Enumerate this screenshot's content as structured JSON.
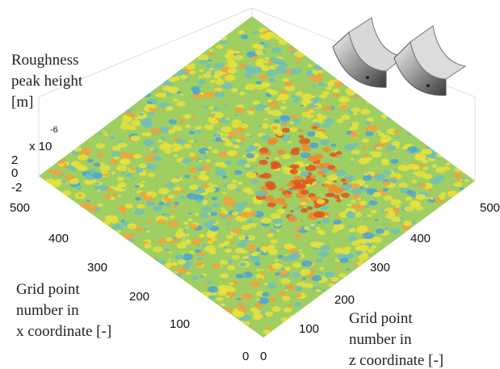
{
  "labels": {
    "vertical": [
      "Roughness",
      "peak height",
      "[m]"
    ],
    "x": [
      "Grid point",
      "number in",
      "x coordinate [-]"
    ],
    "z": [
      "Grid point",
      "number in",
      "z coordinate [-]"
    ]
  },
  "vertical_axis": {
    "ticks": [
      "2",
      "0",
      "-2"
    ],
    "multiplier": "x 10",
    "exponent": "-6"
  },
  "x_axis": {
    "ticks": [
      "500",
      "400",
      "300",
      "200",
      "100",
      "0"
    ]
  },
  "z_axis": {
    "ticks": [
      "0",
      "100",
      "200",
      "300",
      "400",
      "500"
    ]
  }
}
